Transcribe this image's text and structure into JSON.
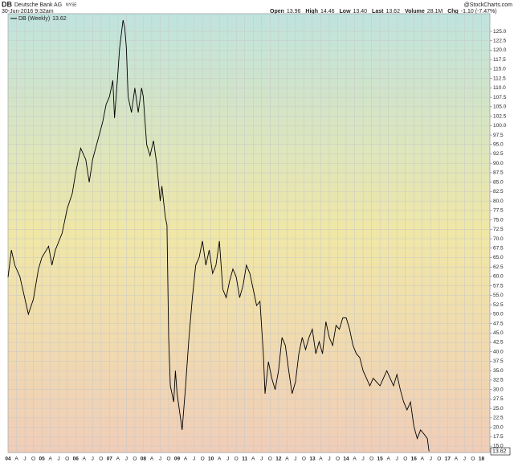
{
  "header": {
    "symbol": "DB",
    "name": "Deutsche Bank AG",
    "exchange": "NYSE",
    "date": "30-Jun-2016 9:32am",
    "source": "@StockCharts.com",
    "quote": [
      {
        "label": "Open",
        "value": "13.96"
      },
      {
        "label": "High",
        "value": "14.46"
      },
      {
        "label": "Low",
        "value": "13.40"
      },
      {
        "label": "Last",
        "value": "13.62"
      },
      {
        "label": "Volume",
        "value": "28.1M"
      },
      {
        "label": "Chg",
        "value": "-1.10 (-7.47%)"
      }
    ]
  },
  "chart_data": {
    "type": "line",
    "last_value_label": "13.62",
    "series": [
      {
        "name": "DB (Weekly)",
        "color": "#000000",
        "x": [
          2004.0,
          2004.1,
          2004.2,
          2004.35,
          2004.5,
          2004.6,
          2004.75,
          2004.9,
          2005.0,
          2005.2,
          2005.3,
          2005.4,
          2005.6,
          2005.75,
          2005.9,
          2006.0,
          2006.15,
          2006.3,
          2006.4,
          2006.5,
          2006.65,
          2006.8,
          2006.9,
          2007.0,
          2007.1,
          2007.15,
          2007.25,
          2007.3,
          2007.4,
          2007.45,
          2007.5,
          2007.55,
          2007.65,
          2007.75,
          2007.85,
          2007.95,
          2008.0,
          2008.1,
          2008.2,
          2008.3,
          2008.4,
          2008.5,
          2008.55,
          2008.65,
          2008.7,
          2008.75,
          2008.8,
          2008.9,
          2008.95,
          2009.0,
          2009.1,
          2009.15,
          2009.25,
          2009.35,
          2009.45,
          2009.55,
          2009.65,
          2009.75,
          2009.85,
          2009.95,
          2010.05,
          2010.15,
          2010.25,
          2010.35,
          2010.45,
          2010.55,
          2010.65,
          2010.75,
          2010.85,
          2010.95,
          2011.05,
          2011.15,
          2011.25,
          2011.35,
          2011.45,
          2011.55,
          2011.6,
          2011.7,
          2011.8,
          2011.9,
          2012.0,
          2012.1,
          2012.2,
          2012.3,
          2012.4,
          2012.5,
          2012.6,
          2012.7,
          2012.8,
          2012.9,
          2013.0,
          2013.1,
          2013.2,
          2013.3,
          2013.4,
          2013.5,
          2013.6,
          2013.7,
          2013.8,
          2013.9,
          2014.0,
          2014.1,
          2014.2,
          2014.3,
          2014.4,
          2014.5,
          2014.6,
          2014.7,
          2014.8,
          2014.9,
          2015.0,
          2015.1,
          2015.2,
          2015.3,
          2015.4,
          2015.5,
          2015.6,
          2015.7,
          2015.8,
          2015.9,
          2016.0,
          2016.1,
          2016.2,
          2016.3,
          2016.4,
          2016.45
        ],
        "values": [
          59.8,
          67,
          63,
          60,
          54,
          50,
          54,
          62,
          65,
          68,
          63,
          67,
          71.5,
          78,
          82,
          87.5,
          94,
          91,
          85,
          91,
          96,
          101,
          105.6,
          107.7,
          112,
          102,
          114,
          120.5,
          128,
          126,
          120.5,
          107.7,
          103.5,
          110,
          103.5,
          110,
          107.7,
          95,
          92,
          96,
          89.6,
          80,
          84,
          75.8,
          73.6,
          43.8,
          31,
          26.7,
          35,
          28.9,
          22.5,
          19.3,
          31,
          43.8,
          54.4,
          63,
          65,
          69.4,
          63,
          67,
          60.8,
          63,
          69.4,
          56.6,
          54.4,
          58.7,
          62,
          59.8,
          54.4,
          57.6,
          63,
          60.8,
          56.6,
          52.3,
          53.4,
          39.5,
          28.9,
          37.4,
          33,
          30,
          35,
          43.8,
          41.7,
          35,
          28.9,
          32,
          39.5,
          43.8,
          40.6,
          43.8,
          46,
          39.5,
          42.7,
          39.5,
          48,
          43.8,
          41.7,
          47,
          46,
          49,
          49,
          46,
          41.7,
          39.5,
          38.5,
          35,
          33,
          31,
          33,
          32,
          31,
          33,
          35,
          33,
          31,
          34,
          30,
          26.7,
          24.6,
          26.7,
          20.3,
          17,
          19.3,
          18.2,
          17,
          13.62
        ]
      }
    ],
    "xlim": [
      2004.0,
      2018.25
    ],
    "ylim": [
      13.3,
      129.7
    ],
    "grid": true,
    "xticks": [
      {
        "value": 2004,
        "label": "04"
      },
      {
        "value": 2004.25,
        "label": "A"
      },
      {
        "value": 2004.5,
        "label": "J"
      },
      {
        "value": 2004.75,
        "label": "O"
      },
      {
        "value": 2005,
        "label": "05"
      },
      {
        "value": 2005.25,
        "label": "A"
      },
      {
        "value": 2005.5,
        "label": "J"
      },
      {
        "value": 2005.75,
        "label": "O"
      },
      {
        "value": 2006,
        "label": "06"
      },
      {
        "value": 2006.25,
        "label": "A"
      },
      {
        "value": 2006.5,
        "label": "J"
      },
      {
        "value": 2006.75,
        "label": "O"
      },
      {
        "value": 2007,
        "label": "07"
      },
      {
        "value": 2007.25,
        "label": "A"
      },
      {
        "value": 2007.5,
        "label": "J"
      },
      {
        "value": 2007.75,
        "label": "O"
      },
      {
        "value": 2008,
        "label": "08"
      },
      {
        "value": 2008.25,
        "label": "A"
      },
      {
        "value": 2008.5,
        "label": "J"
      },
      {
        "value": 2008.75,
        "label": "O"
      },
      {
        "value": 2009,
        "label": "09"
      },
      {
        "value": 2009.25,
        "label": "A"
      },
      {
        "value": 2009.5,
        "label": "J"
      },
      {
        "value": 2009.75,
        "label": "O"
      },
      {
        "value": 2010,
        "label": "10"
      },
      {
        "value": 2010.25,
        "label": "A"
      },
      {
        "value": 2010.5,
        "label": "J"
      },
      {
        "value": 2010.75,
        "label": "O"
      },
      {
        "value": 2011,
        "label": "11"
      },
      {
        "value": 2011.25,
        "label": "A"
      },
      {
        "value": 2011.5,
        "label": "J"
      },
      {
        "value": 2011.75,
        "label": "O"
      },
      {
        "value": 2012,
        "label": "12"
      },
      {
        "value": 2012.25,
        "label": "A"
      },
      {
        "value": 2012.5,
        "label": "J"
      },
      {
        "value": 2012.75,
        "label": "O"
      },
      {
        "value": 2013,
        "label": "13"
      },
      {
        "value": 2013.25,
        "label": "A"
      },
      {
        "value": 2013.5,
        "label": "J"
      },
      {
        "value": 2013.75,
        "label": "O"
      },
      {
        "value": 2014,
        "label": "14"
      },
      {
        "value": 2014.25,
        "label": "A"
      },
      {
        "value": 2014.5,
        "label": "J"
      },
      {
        "value": 2014.75,
        "label": "O"
      },
      {
        "value": 2015,
        "label": "15"
      },
      {
        "value": 2015.25,
        "label": "A"
      },
      {
        "value": 2015.5,
        "label": "J"
      },
      {
        "value": 2015.75,
        "label": "O"
      },
      {
        "value": 2016,
        "label": "16"
      },
      {
        "value": 2016.25,
        "label": "A"
      },
      {
        "value": 2016.5,
        "label": "J"
      },
      {
        "value": 2016.75,
        "label": "O"
      },
      {
        "value": 2017,
        "label": "17"
      },
      {
        "value": 2017.25,
        "label": "A"
      },
      {
        "value": 2017.5,
        "label": "J"
      },
      {
        "value": 2017.75,
        "label": "O"
      },
      {
        "value": 2018,
        "label": "18"
      }
    ],
    "yticks": [
      {
        "value": 15,
        "label": "15.0"
      },
      {
        "value": 17.5,
        "label": "17.5"
      },
      {
        "value": 20,
        "label": "20.0"
      },
      {
        "value": 22.5,
        "label": "22.5"
      },
      {
        "value": 25,
        "label": "25.0"
      },
      {
        "value": 27.5,
        "label": "27.5"
      },
      {
        "value": 30,
        "label": "30.0"
      },
      {
        "value": 32.5,
        "label": "32.5"
      },
      {
        "value": 35,
        "label": "35.0"
      },
      {
        "value": 37.5,
        "label": "37.5"
      },
      {
        "value": 40,
        "label": "40.0"
      },
      {
        "value": 42.5,
        "label": "42.5"
      },
      {
        "value": 45,
        "label": "45.0"
      },
      {
        "value": 47.5,
        "label": "47.5"
      },
      {
        "value": 50,
        "label": "50.0"
      },
      {
        "value": 52.5,
        "label": "52.5"
      },
      {
        "value": 55,
        "label": "55.0"
      },
      {
        "value": 57.5,
        "label": "57.5"
      },
      {
        "value": 60,
        "label": "60.0"
      },
      {
        "value": 62.5,
        "label": "62.5"
      },
      {
        "value": 65,
        "label": "65.0"
      },
      {
        "value": 67.5,
        "label": "67.5"
      },
      {
        "value": 70,
        "label": "70.0"
      },
      {
        "value": 72.5,
        "label": "72.5"
      },
      {
        "value": 75,
        "label": "75.0"
      },
      {
        "value": 77.5,
        "label": "77.5"
      },
      {
        "value": 80,
        "label": "80.0"
      },
      {
        "value": 82.5,
        "label": "82.5"
      },
      {
        "value": 85,
        "label": "85.0"
      },
      {
        "value": 87.5,
        "label": "87.5"
      },
      {
        "value": 90,
        "label": "90.0"
      },
      {
        "value": 92.5,
        "label": "92.5"
      },
      {
        "value": 95,
        "label": "95.0"
      },
      {
        "value": 97.5,
        "label": "97.5"
      },
      {
        "value": 100,
        "label": "100.0"
      },
      {
        "value": 102.5,
        "label": "102.5"
      },
      {
        "value": 105,
        "label": "105.0"
      },
      {
        "value": 107.5,
        "label": "107.5"
      },
      {
        "value": 110,
        "label": "110.0"
      },
      {
        "value": 112.5,
        "label": "112.5"
      },
      {
        "value": 115,
        "label": "115.0"
      },
      {
        "value": 117.5,
        "label": "117.5"
      },
      {
        "value": 120,
        "label": "120.0"
      },
      {
        "value": 122.5,
        "label": "122.5"
      },
      {
        "value": 125,
        "label": "125.0"
      }
    ]
  }
}
